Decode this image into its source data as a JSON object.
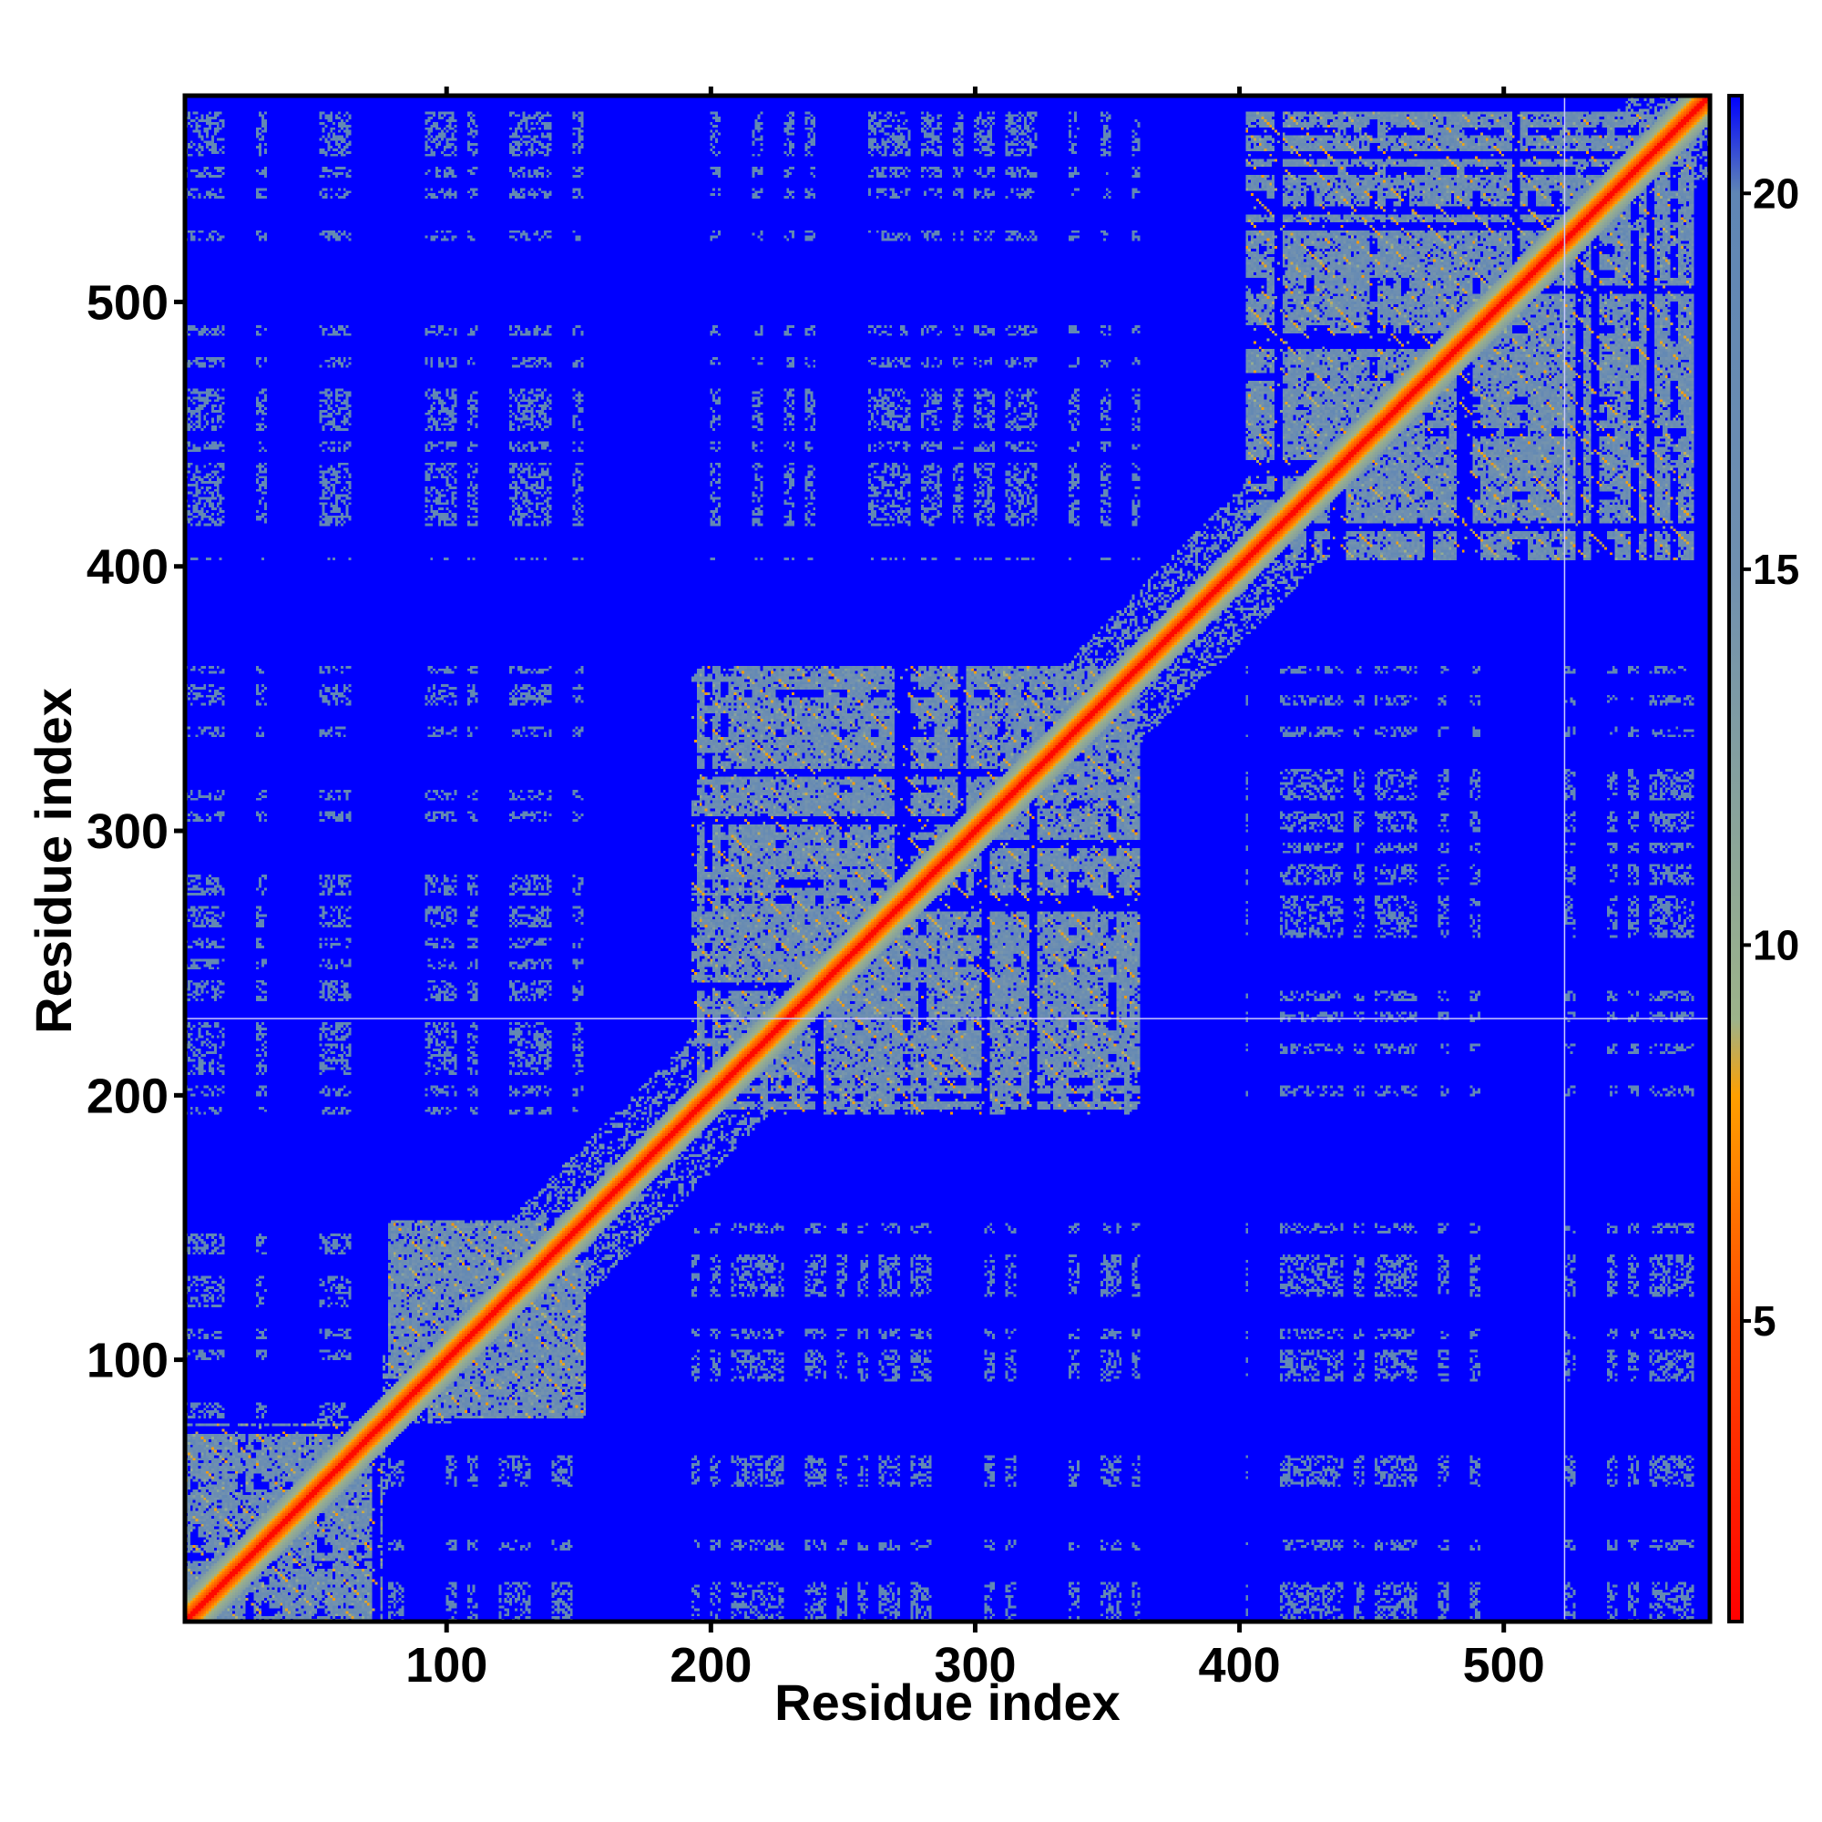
{
  "chart_data": {
    "type": "heatmap",
    "title": "",
    "xlabel": "Residue index",
    "ylabel": "Residue index",
    "n_residues": 578,
    "xlim": [
      1,
      578
    ],
    "ylim": [
      1,
      578
    ],
    "x_ticks": [
      100,
      200,
      300,
      400,
      500
    ],
    "y_ticks": [
      100,
      200,
      300,
      400,
      500
    ],
    "colorbar": {
      "ticks": [
        5,
        10,
        15,
        20
      ],
      "range": [
        1,
        21.3
      ],
      "stops": [
        {
          "value": 1,
          "color": "#ff0000"
        },
        {
          "value": 5,
          "color": "#ff4a00"
        },
        {
          "value": 8,
          "color": "#ffa000"
        },
        {
          "value": 9,
          "color": "#9db38a"
        },
        {
          "value": 15,
          "color": "#7090b0"
        },
        {
          "value": 20,
          "color": "#5f86b5"
        },
        {
          "value": 21.3,
          "color": "#0000ff"
        }
      ]
    },
    "background_value": 21.3,
    "domains": [
      {
        "start": 1,
        "end": 75
      },
      {
        "start": 78,
        "end": 152
      },
      {
        "start": 193,
        "end": 362
      },
      {
        "start": 403,
        "end": 572
      }
    ],
    "guide_lines": {
      "x": 523,
      "y": 229
    }
  },
  "colors": {
    "background": "#0000ff",
    "diagonal": "#ff0000",
    "contact_near": "#ff8c00",
    "contact_mid": "#a8b87f",
    "contact_far": "#6a8fb3",
    "guide_line": "#c8c8ff",
    "axis": "#000000"
  }
}
